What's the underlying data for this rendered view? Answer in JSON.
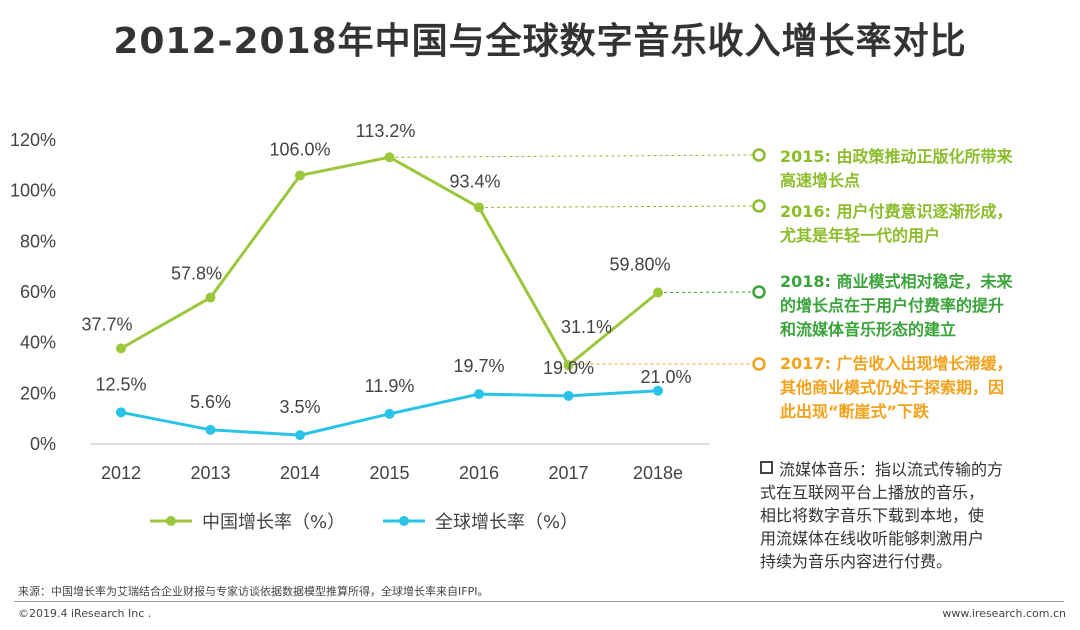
{
  "title": "2012-2018年中国与全球数字音乐收入增长率对比",
  "chart_data": {
    "type": "line",
    "categories": [
      "2012",
      "2013",
      "2014",
      "2015",
      "2016",
      "2017",
      "2018e"
    ],
    "ylim": [
      0,
      120
    ],
    "yticks": [
      0,
      20,
      40,
      60,
      80,
      100,
      120
    ],
    "ytick_labels": [
      "0%",
      "20%",
      "40%",
      "60%",
      "80%",
      "100%",
      "120%"
    ],
    "series": [
      {
        "name": "中国增长率（%）",
        "color": "#9bc73c",
        "values": [
          37.7,
          57.8,
          106.0,
          113.2,
          93.4,
          31.1,
          59.8
        ],
        "labels": [
          "37.7%",
          "57.8%",
          "106.0%",
          "113.2%",
          "93.4%",
          "31.1%",
          "59.80%"
        ]
      },
      {
        "name": "全球增长率（%）",
        "color": "#29c3e8",
        "values": [
          12.5,
          5.6,
          3.5,
          11.9,
          19.7,
          19.0,
          21.0
        ],
        "labels": [
          "12.5%",
          "5.6%",
          "3.5%",
          "11.9%",
          "19.7%",
          "19.0%",
          "21.0%"
        ]
      }
    ]
  },
  "annotations": [
    {
      "point": "2015",
      "color": "#8bbd2a",
      "lines": [
        "2015: 由政策推动正版化所带来",
        "高速增长点"
      ]
    },
    {
      "point": "2016",
      "color": "#8bbd2a",
      "lines": [
        "2016: 用户付费意识逐渐形成，",
        "尤其是年轻一代的用户"
      ]
    },
    {
      "point": "2018e",
      "color": "#3aa33a",
      "lines": [
        "2018: 商业模式相对稳定，未来",
        "的增长点在于用户付费率的提升",
        "和流媒体音乐形态的建立"
      ]
    },
    {
      "point": "2017",
      "color": "#f2a21b",
      "lines": [
        "2017: 广告收入出现增长滞缓，",
        "其他商业模式仍处于探索期，因",
        "此出现“断崖式”下跌"
      ]
    }
  ],
  "note_lines": [
    "流媒体音乐：指以流式传输的方",
    "式在互联网平台上播放的音乐，",
    "相比将数字音乐下载到本地，使",
    "用流媒体在线收听能够刺激用户",
    "持续为音乐内容进行付费。"
  ],
  "footer": {
    "source": "来源：中国增长率为艾瑞结合企业财报与专家访谈依据数据模型推算所得，全球增长率来自IFPI。",
    "copyright": "©2019.4 iResearch Inc .",
    "site": "www.iresearch.com.cn"
  }
}
